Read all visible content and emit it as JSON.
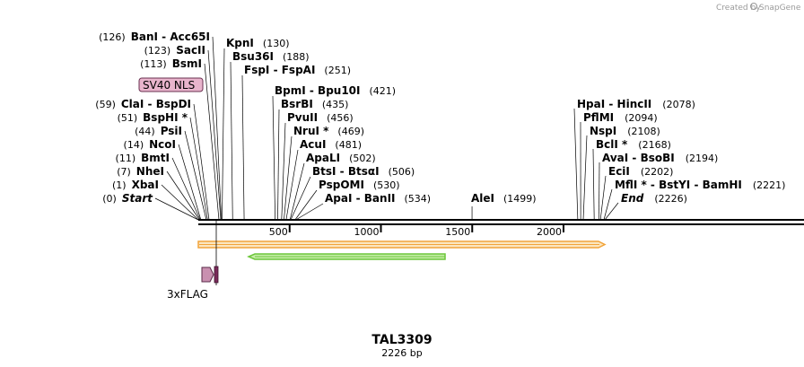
{
  "watermark": {
    "created_by": "Created by",
    "brand": "SnapGene"
  },
  "map": {
    "name": "TAL3309",
    "length_label": "2226 bp",
    "length": 2226,
    "ticks": [
      "500",
      "1000",
      "1500",
      "2000"
    ],
    "tick_values": [
      500,
      1000,
      1500,
      2000
    ]
  },
  "left_sites": [
    {
      "pos": "(0)",
      "name": "Start",
      "pos_val": 0,
      "italic": true
    },
    {
      "pos": "(1)",
      "name": "XbaI",
      "pos_val": 1
    },
    {
      "pos": "(7)",
      "name": "NheI",
      "pos_val": 7
    },
    {
      "pos": "(11)",
      "name": "BmtI",
      "pos_val": 11
    },
    {
      "pos": "(14)",
      "name": "NcoI",
      "pos_val": 14
    },
    {
      "pos": "(44)",
      "name": "PsiI",
      "pos_val": 44
    },
    {
      "pos": "(51)",
      "name": "BspHI *",
      "pos_val": 51
    },
    {
      "pos": "(59)",
      "name": "ClaI",
      "name2": "BspDI",
      "pos_val": 59
    },
    {
      "pos": "(113)",
      "name": "BsmI",
      "pos_val": 113
    },
    {
      "pos": "(123)",
      "name": "SacII",
      "pos_val": 123
    },
    {
      "pos": "(126)",
      "name": "BanI",
      "name2": "Acc65I",
      "pos_val": 126
    }
  ],
  "mid_sites": [
    {
      "name": "KpnI",
      "pos": "(130)",
      "pos_val": 130
    },
    {
      "name": "Bsu36I",
      "pos": "(188)",
      "pos_val": 188
    },
    {
      "name": "FspI",
      "name2": "FspAI",
      "pos": "(251)",
      "pos_val": 251
    },
    {
      "name": "BpmI",
      "name2": "Bpu10I",
      "pos": "(421)",
      "pos_val": 421
    },
    {
      "name": "BsrBI",
      "pos": "(435)",
      "pos_val": 435
    },
    {
      "name": "PvuII",
      "pos": "(456)",
      "pos_val": 456
    },
    {
      "name": "NruI *",
      "pos": "(469)",
      "pos_val": 469
    },
    {
      "name": "AcuI",
      "pos": "(481)",
      "pos_val": 481
    },
    {
      "name": "ApaLI",
      "pos": "(502)",
      "pos_val": 502
    },
    {
      "name": "BtsI",
      "name2": "BtsαI",
      "pos": "(506)",
      "pos_val": 506
    },
    {
      "name": "PspOMI",
      "pos": "(530)",
      "pos_val": 530
    },
    {
      "name": "ApaI",
      "name2": "BanII",
      "pos": "(534)",
      "pos_val": 534
    },
    {
      "name": "AleI",
      "pos": "(1499)",
      "pos_val": 1499
    }
  ],
  "right_sites": [
    {
      "name": "HpaI",
      "name2": "HincII",
      "pos": "(2078)",
      "pos_val": 2078
    },
    {
      "name": "PflMI",
      "pos": "(2094)",
      "pos_val": 2094
    },
    {
      "name": "NspI",
      "pos": "(2108)",
      "pos_val": 2108
    },
    {
      "name": "BclI *",
      "pos": "(2168)",
      "pos_val": 2168
    },
    {
      "name": "AvaI",
      "name2": "BsoBI",
      "pos": "(2194)",
      "pos_val": 2194
    },
    {
      "name": "EciI",
      "pos": "(2202)",
      "pos_val": 2202
    },
    {
      "name": "MflI *",
      "name2": "BstYI",
      "name3": "BamHI",
      "pos": "(2221)",
      "pos_val": 2221
    },
    {
      "name": "End",
      "pos": "(2226)",
      "pos_val": 2226,
      "italic": true
    }
  ],
  "features": {
    "sv40_nls": "SV40 NLS",
    "flag": "3xFLAG"
  },
  "colors": {
    "sv40_fill": "#e8b4cc",
    "flag_fill": "#c990b0",
    "flag_dark": "#7a2a5a",
    "orange_arrow": "#f2a43a",
    "orange_fill": "#fbe6c0",
    "green_arrow": "#6cc63a",
    "green_fill": "#c6eea8"
  }
}
